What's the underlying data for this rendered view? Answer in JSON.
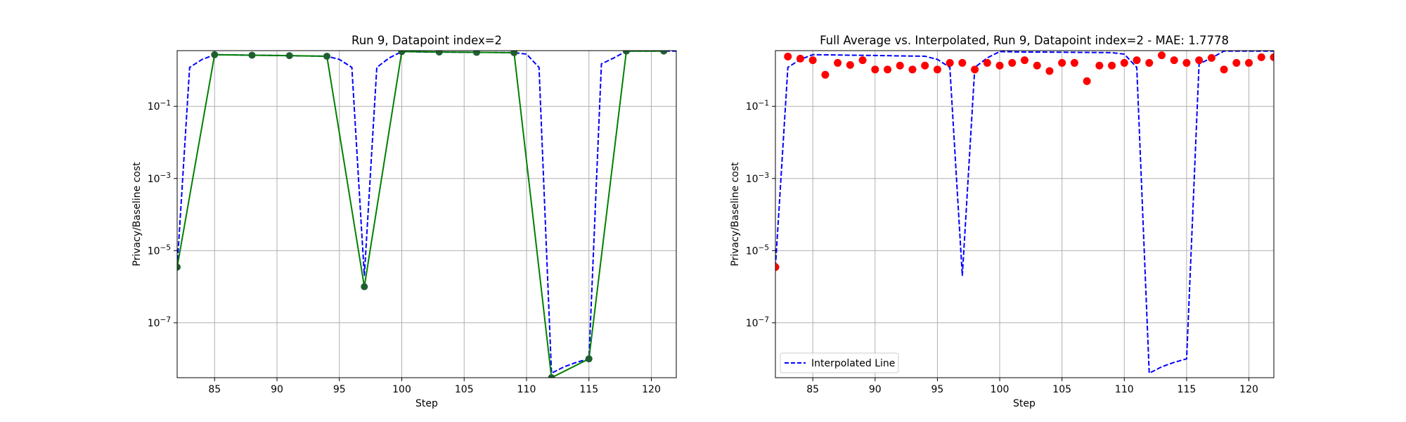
{
  "figure": {
    "background": "#ffffff",
    "grid_color": "#b0b0b0"
  },
  "chart_data": [
    {
      "type": "line",
      "title": "Run 9, Datapoint index=2",
      "xlabel": "Step",
      "ylabel": "Privacy/Baseline cost",
      "xlim": [
        82,
        122
      ],
      "ylim": [
        3e-09,
        3.5
      ],
      "yscale": "log",
      "grid": true,
      "xticks": [
        "85",
        "90",
        "95",
        "100",
        "105",
        "110",
        "115",
        "120"
      ],
      "yticks": [
        {
          "value": 1e-07,
          "exp": "−7"
        },
        {
          "value": 1e-05,
          "exp": "−5"
        },
        {
          "value": 0.001,
          "exp": "−3"
        },
        {
          "value": 0.1,
          "exp": "−1"
        }
      ],
      "series": [
        {
          "style": "dashed",
          "color": "#0000ff",
          "x": [
            82,
            83,
            84,
            85,
            86,
            87,
            88,
            89,
            90,
            91,
            92,
            93,
            94,
            95,
            96,
            97,
            98,
            99,
            100,
            101,
            102,
            103,
            104,
            105,
            106,
            107,
            108,
            109,
            110,
            111,
            112,
            113,
            114,
            115,
            116,
            117,
            118,
            119,
            120,
            121,
            122
          ],
          "y": [
            3.5e-06,
            1.2,
            2.0,
            2.7,
            2.68,
            2.65,
            2.62,
            2.6,
            2.57,
            2.54,
            2.5,
            2.47,
            2.45,
            2.0,
            1.2,
            2e-06,
            1.2,
            2.2,
            3.3,
            3.25,
            3.2,
            3.2,
            3.18,
            3.16,
            3.14,
            3.12,
            3.1,
            3.08,
            2.8,
            1.2,
            4e-09,
            6e-09,
            8e-09,
            1e-08,
            1.5,
            2.2,
            3.4,
            3.4,
            3.4,
            3.4,
            3.4
          ]
        },
        {
          "style": "solid",
          "color": "#008000",
          "marker_color": "#1f5f2f",
          "x": [
            82,
            85,
            88,
            91,
            94,
            97,
            100,
            103,
            106,
            109,
            112,
            115,
            118,
            121
          ],
          "y": [
            3.5e-06,
            2.7,
            2.62,
            2.54,
            2.45,
            1e-06,
            3.3,
            3.2,
            3.14,
            3.08,
            3e-09,
            1e-08,
            3.4,
            3.4
          ]
        }
      ]
    },
    {
      "type": "scatter",
      "title": "Full Average vs. Interpolated, Run 9, Datapoint index=2 - MAE: 1.7778",
      "xlabel": "Step",
      "ylabel": "Privacy/Baseline cost",
      "xlim": [
        82,
        122
      ],
      "ylim": [
        3e-09,
        3.5
      ],
      "yscale": "log",
      "grid": true,
      "legend": {
        "entries": [
          "Interpolated Line"
        ],
        "placement": "lower-left"
      },
      "xticks": [
        "85",
        "90",
        "95",
        "100",
        "105",
        "110",
        "115",
        "120"
      ],
      "yticks": [
        {
          "value": 1e-07,
          "exp": "−7"
        },
        {
          "value": 1e-05,
          "exp": "−5"
        },
        {
          "value": 0.001,
          "exp": "−3"
        },
        {
          "value": 0.1,
          "exp": "−1"
        }
      ],
      "series": [
        {
          "style": "dashed",
          "color": "#0000ff",
          "x": [
            82,
            83,
            84,
            85,
            86,
            87,
            88,
            89,
            90,
            91,
            92,
            93,
            94,
            95,
            96,
            97,
            98,
            99,
            100,
            101,
            102,
            103,
            104,
            105,
            106,
            107,
            108,
            109,
            110,
            111,
            112,
            113,
            114,
            115,
            116,
            117,
            118,
            119,
            120,
            121,
            122
          ],
          "y": [
            3.5e-06,
            1.2,
            2.0,
            2.7,
            2.68,
            2.65,
            2.62,
            2.6,
            2.57,
            2.54,
            2.5,
            2.47,
            2.45,
            2.0,
            1.2,
            2e-06,
            1.2,
            2.2,
            3.3,
            3.25,
            3.2,
            3.2,
            3.18,
            3.16,
            3.14,
            3.12,
            3.1,
            3.08,
            2.8,
            1.2,
            4e-09,
            6e-09,
            8e-09,
            1e-08,
            1.5,
            2.2,
            3.4,
            3.4,
            3.4,
            3.4,
            3.4
          ]
        },
        {
          "style": "markers",
          "color": "#ff0000",
          "x": [
            82,
            83,
            84,
            85,
            86,
            87,
            88,
            89,
            90,
            91,
            92,
            93,
            94,
            95,
            96,
            97,
            98,
            99,
            100,
            101,
            102,
            103,
            104,
            105,
            106,
            107,
            108,
            109,
            110,
            111,
            112,
            113,
            114,
            115,
            116,
            117,
            118,
            119,
            120,
            121,
            122
          ],
          "y": [
            3.5e-06,
            2.4,
            2.1,
            1.9,
            0.75,
            1.6,
            1.4,
            1.9,
            1.05,
            1.05,
            1.35,
            1.05,
            1.35,
            1.05,
            1.6,
            1.6,
            1.05,
            1.6,
            1.35,
            1.6,
            1.9,
            1.35,
            0.95,
            1.6,
            1.6,
            0.5,
            1.35,
            1.35,
            1.6,
            1.9,
            1.6,
            2.6,
            1.9,
            1.6,
            1.9,
            2.2,
            1.05,
            1.6,
            1.6,
            2.3,
            2.3
          ]
        }
      ]
    }
  ]
}
